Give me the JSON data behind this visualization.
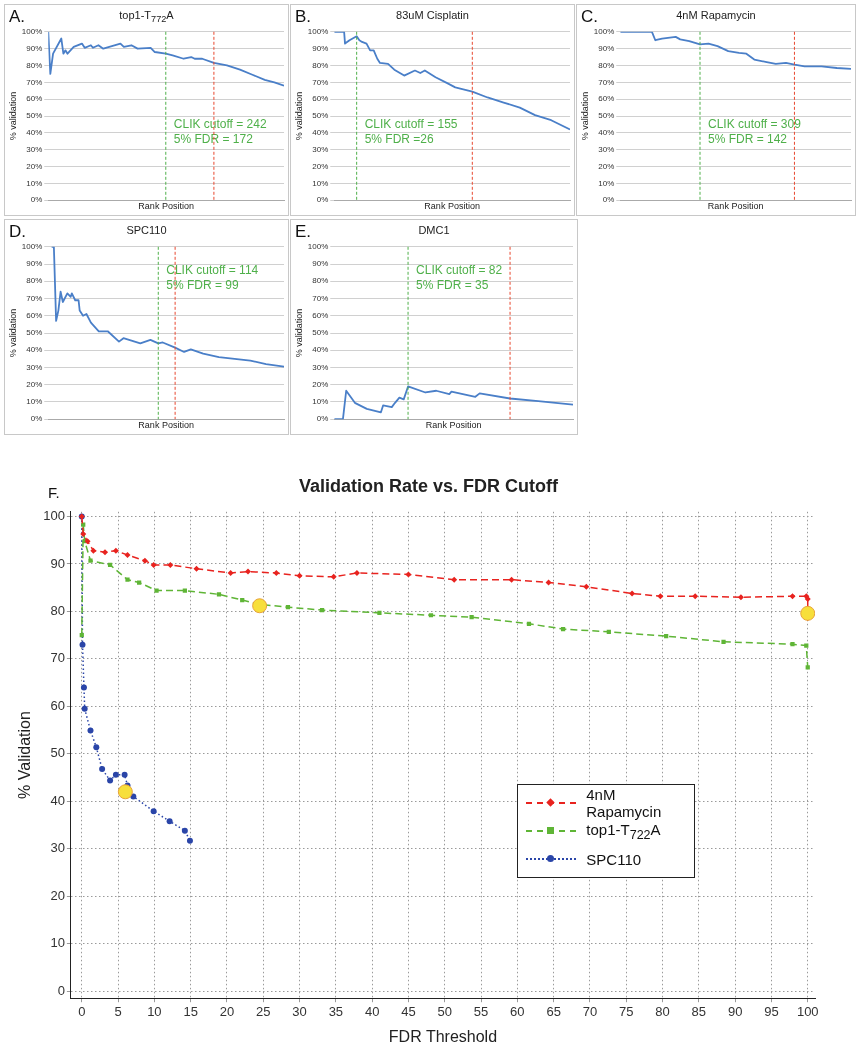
{
  "chart_data": [
    {
      "type": "line",
      "title": "top1-T$_{772}$A",
      "xlabel": "Rank Position",
      "ylabel": "% validation",
      "marker": "none",
      "grid": "y",
      "tick_labels": "y",
      "xlim": [
        1,
        344
      ],
      "ylim": [
        0,
        100
      ],
      "yticks": [
        {
          "value": 0,
          "label": "0%"
        },
        {
          "value": 10,
          "label": "10%"
        },
        {
          "value": 20,
          "label": "20%"
        },
        {
          "value": 30,
          "label": "30%"
        },
        {
          "value": 40,
          "label": "40%"
        },
        {
          "value": 50,
          "label": "50%"
        },
        {
          "value": 60,
          "label": "60%"
        },
        {
          "value": 70,
          "label": "70%"
        },
        {
          "value": 80,
          "label": "80%"
        },
        {
          "value": 90,
          "label": "90%"
        },
        {
          "value": 100,
          "label": "100%"
        }
      ],
      "series": [
        {
          "color": "#4a7fc8",
          "x": [
            1,
            4,
            8,
            20,
            23,
            26,
            29,
            38,
            50,
            54,
            63,
            66,
            74,
            81,
            106,
            111,
            122,
            131,
            150,
            156,
            172,
            182,
            198,
            209,
            214,
            225,
            242,
            261,
            280,
            298,
            316,
            330,
            344
          ],
          "values": [
            100,
            75,
            87,
            96,
            87,
            89,
            87,
            91,
            93,
            90.5,
            92,
            90.5,
            92,
            90,
            93,
            91,
            92,
            90,
            90.5,
            88,
            87,
            86,
            84,
            85,
            84,
            84,
            81.5,
            80,
            77.5,
            74.5,
            71.5,
            70,
            68
          ]
        }
      ],
      "ref_lines": [
        {
          "axis": "x",
          "value": 242,
          "color": "#e8472f",
          "label": "CLIK cutoff = 242"
        },
        {
          "axis": "x",
          "value": 172,
          "color": "#4fb04a",
          "label": "5% FDR = 172"
        }
      ],
      "annotations": [
        "A."
      ]
    },
    {
      "type": "line",
      "title": "83uM Cisplatin",
      "xlabel": "Rank Position",
      "ylabel": "% validation",
      "marker": "none",
      "grid": "y",
      "tick_labels": "y",
      "xlim": [
        1,
        264
      ],
      "ylim": [
        0,
        100
      ],
      "yticks": [
        {
          "value": 0,
          "label": "0%"
        },
        {
          "value": 10,
          "label": "10%"
        },
        {
          "value": 20,
          "label": "20%"
        },
        {
          "value": 30,
          "label": "30%"
        },
        {
          "value": 40,
          "label": "40%"
        },
        {
          "value": 50,
          "label": "50%"
        },
        {
          "value": 60,
          "label": "60%"
        },
        {
          "value": 70,
          "label": "70%"
        },
        {
          "value": 80,
          "label": "80%"
        },
        {
          "value": 90,
          "label": "90%"
        },
        {
          "value": 100,
          "label": "100%"
        }
      ],
      "series": [
        {
          "color": "#4a7fc8",
          "x": [
            1,
            12,
            13,
            18,
            26,
            29,
            32,
            37,
            41,
            45,
            49,
            52,
            61,
            68,
            79,
            91,
            97,
            102,
            114,
            127,
            136,
            155,
            172,
            190,
            208,
            225,
            243,
            264
          ],
          "values": [
            100,
            100,
            93,
            95,
            97.4,
            95,
            94,
            93,
            89,
            89,
            84,
            81.5,
            81,
            77.5,
            74,
            77,
            75.5,
            77,
            73,
            69.5,
            67,
            64.5,
            61,
            58,
            55,
            50.5,
            47.5,
            42
          ]
        }
      ],
      "ref_lines": [
        {
          "axis": "x",
          "value": 155,
          "color": "#e8472f",
          "label": "CLIK cutoff = 155"
        },
        {
          "axis": "x",
          "value": 26,
          "color": "#4fb04a",
          "label": "5% FDR =26"
        }
      ],
      "annotations": [
        "B."
      ]
    },
    {
      "type": "line",
      "title": "4nM Rapamycin",
      "xlabel": "Rank Position",
      "ylabel": "% validation",
      "marker": "none",
      "grid": "y",
      "tick_labels": "y",
      "xlim": [
        1,
        409
      ],
      "ylim": [
        0,
        100
      ],
      "yticks": [
        {
          "value": 0,
          "label": "0%"
        },
        {
          "value": 10,
          "label": "10%"
        },
        {
          "value": 20,
          "label": "20%"
        },
        {
          "value": 30,
          "label": "30%"
        },
        {
          "value": 40,
          "label": "40%"
        },
        {
          "value": 50,
          "label": "50%"
        },
        {
          "value": 60,
          "label": "60%"
        },
        {
          "value": 70,
          "label": "70%"
        },
        {
          "value": 80,
          "label": "80%"
        },
        {
          "value": 90,
          "label": "90%"
        },
        {
          "value": 100,
          "label": "100%"
        }
      ],
      "series": [
        {
          "color": "#4a7fc8",
          "x": [
            1,
            57,
            63,
            75,
            99,
            107,
            123,
            142,
            157,
            173,
            192,
            211,
            224,
            238,
            260,
            276,
            294,
            309,
            327,
            357,
            384,
            409
          ],
          "values": [
            100,
            100,
            95,
            96,
            97,
            95.5,
            94.5,
            92.5,
            93,
            91.5,
            88.5,
            87.5,
            87,
            83.5,
            82,
            81,
            81.5,
            80.5,
            79.5,
            79.5,
            78.5,
            78
          ]
        }
      ],
      "ref_lines": [
        {
          "axis": "x",
          "value": 309,
          "color": "#e8472f",
          "label": "CLIK cutoff = 309"
        },
        {
          "axis": "x",
          "value": 142,
          "color": "#4fb04a",
          "label": "5% FDR = 142"
        }
      ],
      "annotations": [
        "C."
      ]
    },
    {
      "type": "line",
      "title": "SPC110",
      "xlabel": "Rank Position",
      "ylabel": "% validation",
      "marker": "none",
      "grid": "y",
      "tick_labels": "y",
      "xlim": [
        1,
        211
      ],
      "ylim": [
        0,
        100
      ],
      "yticks": [
        {
          "value": 0,
          "label": "0%"
        },
        {
          "value": 10,
          "label": "10%"
        },
        {
          "value": 20,
          "label": "20%"
        },
        {
          "value": 30,
          "label": "30%"
        },
        {
          "value": 40,
          "label": "40%"
        },
        {
          "value": 50,
          "label": "50%"
        },
        {
          "value": 60,
          "label": "60%"
        },
        {
          "value": 70,
          "label": "70%"
        },
        {
          "value": 80,
          "label": "80%"
        },
        {
          "value": 90,
          "label": "90%"
        },
        {
          "value": 100,
          "label": "100%"
        }
      ],
      "series": [
        {
          "color": "#4a7fc8",
          "x": [
            4,
            6,
            8,
            10,
            12,
            14,
            18,
            21,
            22,
            25,
            28,
            29,
            32,
            35,
            39,
            46,
            54,
            64,
            68,
            78,
            83,
            92,
            99,
            103,
            114,
            122,
            128,
            139,
            153,
            167,
            181,
            195,
            211
          ],
          "values": [
            100,
            100,
            57,
            63,
            74,
            68,
            73,
            71,
            73,
            69,
            69,
            63,
            60,
            61,
            56,
            51,
            51,
            45,
            47,
            45,
            44,
            46,
            44,
            44.5,
            41.5,
            39,
            40.5,
            38,
            36,
            35,
            34,
            32,
            30.5
          ]
        }
      ],
      "ref_lines": [
        {
          "axis": "x",
          "value": 114,
          "color": "#e8472f",
          "label": "CLIK cutoff = 114"
        },
        {
          "axis": "x",
          "value": 99,
          "color": "#4fb04a",
          "label": "5% FDR = 99"
        }
      ],
      "annotations": [
        "D."
      ]
    },
    {
      "type": "line",
      "title": "DMC1",
      "xlabel": "Rank Position",
      "ylabel": "% validation",
      "marker": "none",
      "grid": "y",
      "tick_labels": "y",
      "xlim": [
        1,
        111
      ],
      "ylim": [
        0,
        100
      ],
      "yticks": [
        {
          "value": 0,
          "label": "0%"
        },
        {
          "value": 10,
          "label": "10%"
        },
        {
          "value": 20,
          "label": "20%"
        },
        {
          "value": 30,
          "label": "30%"
        },
        {
          "value": 40,
          "label": "40%"
        },
        {
          "value": 50,
          "label": "50%"
        },
        {
          "value": 60,
          "label": "60%"
        },
        {
          "value": 70,
          "label": "70%"
        },
        {
          "value": 80,
          "label": "80%"
        },
        {
          "value": 90,
          "label": "90%"
        },
        {
          "value": 100,
          "label": "100%"
        }
      ],
      "series": [
        {
          "color": "#4a7fc8",
          "x": [
            1,
            5,
            6.5,
            10.5,
            16,
            22.5,
            23.5,
            27.5,
            29,
            31,
            33,
            35,
            43,
            48,
            54,
            55,
            66,
            68,
            82,
            95,
            111
          ],
          "values": [
            0,
            0,
            16.5,
            9.5,
            6,
            4,
            8,
            7,
            9.5,
            12.5,
            11.5,
            19,
            15.5,
            16.5,
            14.5,
            16,
            13,
            15,
            12,
            10.5,
            8.5
          ]
        }
      ],
      "ref_lines": [
        {
          "axis": "x",
          "value": 82,
          "color": "#e8472f",
          "label": "CLIK cutoff = 82"
        },
        {
          "axis": "x",
          "value": 35,
          "color": "#4fb04a",
          "label": "5% FDR = 35"
        }
      ],
      "annotations": [
        "E."
      ]
    },
    {
      "type": "line",
      "title": "Validation Rate vs. FDR Cutoff",
      "xlabel": "FDR Threshold",
      "ylabel": "% Validation",
      "grid": true,
      "legend": "right",
      "xlim": [
        -1.5,
        101
      ],
      "ylim": [
        -1.5,
        101
      ],
      "xticks": [
        0,
        5,
        10,
        15,
        20,
        25,
        30,
        35,
        40,
        45,
        50,
        55,
        60,
        65,
        70,
        75,
        80,
        85,
        90,
        95,
        100
      ],
      "yticks": [
        0,
        10,
        20,
        30,
        40,
        50,
        60,
        70,
        80,
        90,
        100
      ],
      "series": [
        {
          "name": "4nM Rapamycin",
          "color": "#e8231f",
          "marker": "diamond",
          "line_style": "dashed",
          "x": [
            0,
            0.2,
            0.8,
            1.6,
            3.2,
            4.7,
            6.3,
            8.7,
            9.9,
            12.2,
            15.8,
            20.5,
            22.9,
            26.8,
            30,
            34.7,
            37.9,
            45,
            51.3,
            59.2,
            64.3,
            69.5,
            75.8,
            79.7,
            84.5,
            90.8,
            97.9,
            99.8,
            100,
            100
          ],
          "values": [
            100,
            96.3,
            94.8,
            92.8,
            92.5,
            92.8,
            91.9,
            90.7,
            89.8,
            89.8,
            89,
            88.1,
            88.4,
            88.1,
            87.5,
            87.3,
            88.1,
            87.8,
            86.7,
            86.7,
            86.1,
            85.2,
            83.8,
            83.2,
            83.2,
            83,
            83.2,
            83.2,
            82.6,
            78.6
          ]
        },
        {
          "name": "top1-T$_{722}$A",
          "color": "#5fb536",
          "marker": "square",
          "line_style": "dashed",
          "x": [
            0,
            0.2,
            0.4,
            1.2,
            3.9,
            6.3,
            7.9,
            10.3,
            14.2,
            18.9,
            22.1,
            24.5,
            28.4,
            33.1,
            41,
            48.1,
            53.7,
            61.6,
            66.3,
            72.6,
            80.5,
            88.4,
            97.9,
            99.8,
            100
          ],
          "values": [
            75,
            98.3,
            94.8,
            90.7,
            89.8,
            86.7,
            86.1,
            84.4,
            84.4,
            83.6,
            82.4,
            81.5,
            80.9,
            80.3,
            79.7,
            79.2,
            78.8,
            77.4,
            76.3,
            75.7,
            74.8,
            73.6,
            73.1,
            72.8,
            68.2
          ]
        },
        {
          "name": "SPC110",
          "color": "#2a45a8",
          "marker": "circle",
          "line_style": "dotted",
          "x": [
            0,
            0.1,
            0.3,
            0.4,
            1.2,
            2,
            2.8,
            3.9,
            4.7,
            5.9,
            6.3,
            7.1,
            9.9,
            12.1,
            14.2,
            14.9
          ],
          "values": [
            100,
            73,
            64,
            59.5,
            54.9,
            51.4,
            46.8,
            44.4,
            45.6,
            45.6,
            43.3,
            41,
            37.9,
            35.8,
            33.8,
            31.7
          ]
        },
        {
          "type": "scatter",
          "color": "#f7df3b",
          "marker": "circle",
          "x": [
            6,
            24.5,
            100
          ],
          "values": [
            42,
            81.2,
            79.6
          ]
        }
      ],
      "annotations": [
        "F."
      ]
    }
  ]
}
